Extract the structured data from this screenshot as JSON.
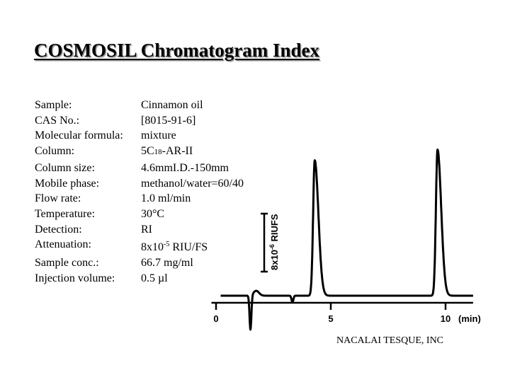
{
  "title": "COSMOSIL Chromatogram Index",
  "conditions": [
    {
      "label": "Sample:",
      "value": "Cinnamon oil"
    },
    {
      "label": "CAS No.:",
      "value": "[8015-91-6]"
    },
    {
      "label": "Molecular formula:",
      "value": "mixture"
    },
    {
      "label": "Column:",
      "value_pre": "5C",
      "value_sub": "18",
      "value_post": "-AR-II"
    },
    {
      "label": "Column size:",
      "value": "4.6mmI.D.-150mm"
    },
    {
      "label": "Mobile phase:",
      "value": "methanol/water=60/40"
    },
    {
      "label": "Flow rate:",
      "value": "1.0 ml/min"
    },
    {
      "label": "Temperature:",
      "value": "30°C"
    },
    {
      "label": "Detection:",
      "value": "RI"
    },
    {
      "label": "Attenuation:",
      "value_pre": "8x10",
      "value_sup": "-5",
      "value_post": " RIU/FS"
    },
    {
      "label": "Sample conc.:",
      "value": "66.7 mg/ml"
    },
    {
      "label": "Injection volume:",
      "value": "0.5 µl"
    }
  ],
  "credit": "NACALAI TESQUE, INC",
  "chart_data": {
    "type": "line",
    "xlabel": "(min)",
    "ylabel": "8x10-6 RIUFS",
    "ylabel_main": "8x10",
    "ylabel_sup": "-6",
    "ylabel_post": " RIUFS",
    "x_ticks": [
      0,
      5,
      10
    ],
    "x_tick_labels": [
      "0",
      "5",
      "10"
    ],
    "xlim": [
      -0.2,
      11.2
    ],
    "peaks": [
      {
        "time": 4.3,
        "height": 1.65
      },
      {
        "time": 9.65,
        "height": 1.78
      }
    ],
    "scale_bar_value": 1.0,
    "scale_bar_label": "8x10-6 RIUFS"
  }
}
